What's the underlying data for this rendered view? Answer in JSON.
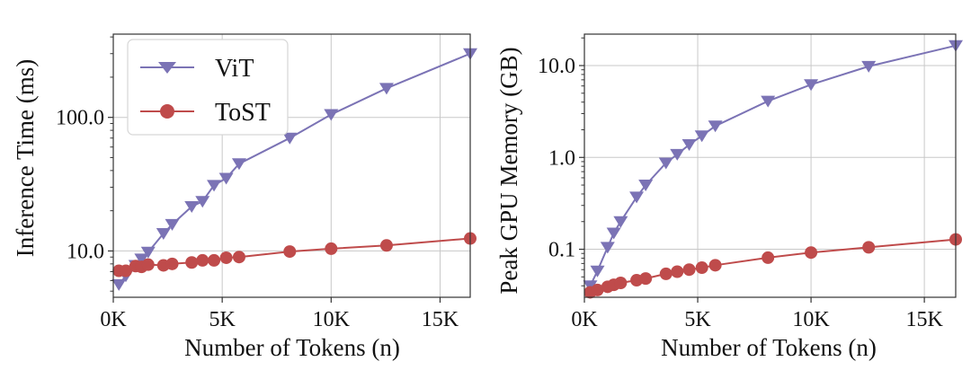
{
  "colors": {
    "vit": "#7b73b5",
    "tost": "#bf4b4b",
    "grid": "#c8c8c8",
    "axis": "#333333"
  },
  "legend": {
    "vit_label": "ViT",
    "tost_label": "ToST"
  },
  "chart_data": [
    {
      "type": "line",
      "title": "",
      "xlabel": "Number of Tokens (n)",
      "ylabel": "Inference Time (ms)",
      "xscale": "linear",
      "yscale": "log",
      "xlim": [
        0,
        16384
      ],
      "ylim": [
        4.5,
        420
      ],
      "grid": true,
      "legend_position": "top-left",
      "x_ticks": [
        0,
        5000,
        10000,
        15000
      ],
      "x_tick_labels": [
        "0K",
        "5K",
        "10K",
        "15K"
      ],
      "y_ticks": [
        10,
        100
      ],
      "y_tick_labels": [
        "10.0",
        "100.0"
      ],
      "series": [
        {
          "name": "ViT",
          "marker": "triangle-down",
          "x": [
            256,
            576,
            1024,
            1296,
            1600,
            2304,
            2704,
            3600,
            4096,
            4624,
            5184,
            5776,
            8100,
            10000,
            12544,
            16384
          ],
          "y": [
            5.6,
            6.5,
            7.8,
            8.7,
            9.8,
            13.5,
            15.8,
            21.5,
            23.5,
            31,
            35,
            45,
            70,
            105,
            165,
            300
          ]
        },
        {
          "name": "ToST",
          "marker": "circle",
          "x": [
            256,
            576,
            1024,
            1296,
            1600,
            2304,
            2704,
            3600,
            4096,
            4624,
            5184,
            5776,
            8100,
            10000,
            12544,
            16384
          ],
          "y": [
            7.1,
            7.1,
            7.7,
            7.6,
            7.9,
            7.8,
            8.0,
            8.2,
            8.5,
            8.5,
            8.9,
            9.0,
            9.9,
            10.4,
            11.0,
            12.4
          ]
        }
      ]
    },
    {
      "type": "line",
      "title": "",
      "xlabel": "Number of Tokens (n)",
      "ylabel": "Peak GPU Memory (GB)",
      "xscale": "linear",
      "yscale": "log",
      "xlim": [
        0,
        16384
      ],
      "ylim": [
        0.03,
        22
      ],
      "grid": true,
      "legend_position": "none",
      "x_ticks": [
        0,
        5000,
        10000,
        15000
      ],
      "x_tick_labels": [
        "0K",
        "5K",
        "10K",
        "15K"
      ],
      "y_ticks": [
        0.1,
        1.0,
        10.0
      ],
      "y_tick_labels": [
        "0.1",
        "1.0",
        "10.0"
      ],
      "series": [
        {
          "name": "ViT",
          "marker": "triangle-down",
          "x": [
            256,
            576,
            1024,
            1296,
            1600,
            2304,
            2704,
            3600,
            4096,
            4624,
            5184,
            5776,
            8100,
            10000,
            12544,
            16384
          ],
          "y": [
            0.04,
            0.058,
            0.105,
            0.15,
            0.2,
            0.37,
            0.5,
            0.87,
            1.08,
            1.38,
            1.72,
            2.2,
            4.1,
            6.2,
            9.8,
            16.5
          ]
        },
        {
          "name": "ToST",
          "marker": "circle",
          "x": [
            256,
            576,
            1024,
            1296,
            1600,
            2304,
            2704,
            3600,
            4096,
            4624,
            5184,
            5776,
            8100,
            10000,
            12544,
            16384
          ],
          "y": [
            0.034,
            0.036,
            0.039,
            0.041,
            0.043,
            0.046,
            0.048,
            0.054,
            0.057,
            0.06,
            0.063,
            0.067,
            0.081,
            0.092,
            0.105,
            0.128
          ]
        }
      ]
    }
  ]
}
